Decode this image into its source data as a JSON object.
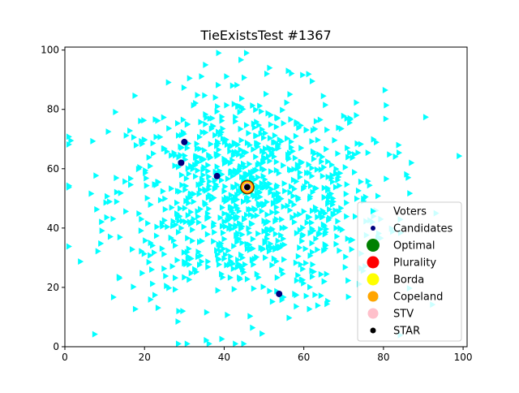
{
  "chart_data": {
    "type": "scatter",
    "title": "TieExistsTest #1367",
    "xlabel": "",
    "ylabel": "",
    "xlim": [
      0,
      101
    ],
    "ylim": [
      0,
      101
    ],
    "x_ticks": [
      0,
      20,
      40,
      60,
      80,
      100
    ],
    "y_ticks": [
      0,
      20,
      40,
      60,
      80,
      100
    ],
    "grid": false,
    "legend_position": "lower-right",
    "voter_distribution": {
      "count": 1000,
      "center": [
        46,
        50
      ],
      "spread": [
        17,
        18
      ],
      "range": [
        1,
        99
      ],
      "marker": "triangle-right",
      "color": "#00ffff"
    },
    "series": [
      {
        "name": "Voters",
        "marker": "triangle-right",
        "color": "#00ffff",
        "points": []
      },
      {
        "name": "Candidates",
        "marker": "circle",
        "color": "#000080",
        "points": [
          [
            30.0,
            69.0
          ],
          [
            29.2,
            62.0
          ],
          [
            38.2,
            57.5
          ],
          [
            45.8,
            53.8
          ],
          [
            53.8,
            17.8
          ]
        ]
      },
      {
        "name": "Optimal",
        "marker": "circle",
        "color": "#008000",
        "points": [
          [
            45.8,
            53.8
          ]
        ]
      },
      {
        "name": "Plurality",
        "marker": "circle",
        "color": "#ff0000",
        "points": [
          [
            45.8,
            53.8
          ]
        ]
      },
      {
        "name": "Borda",
        "marker": "circle",
        "color": "#ffff00",
        "points": [
          [
            45.8,
            53.8
          ]
        ]
      },
      {
        "name": "Copeland",
        "marker": "circle",
        "color": "#ffa500",
        "points": [
          [
            45.8,
            53.8
          ]
        ]
      },
      {
        "name": "STV",
        "marker": "circle",
        "color": "#ffc0cb",
        "points": [
          [
            45.8,
            53.8
          ]
        ]
      },
      {
        "name": "STAR",
        "marker": "circle",
        "color": "#000000",
        "points": [
          [
            45.8,
            53.8
          ]
        ]
      }
    ]
  }
}
